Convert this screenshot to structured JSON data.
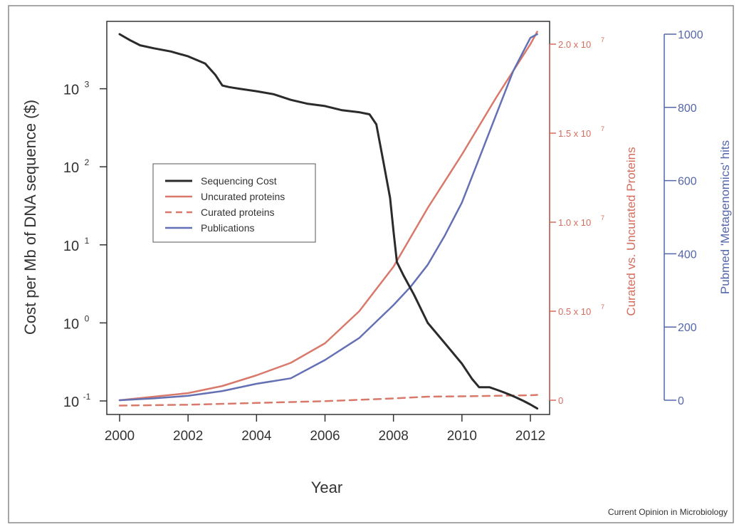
{
  "source": "Current Opinion in Microbiology",
  "colors": {
    "sequencing": "#2b2b2b",
    "uncurated": "#d9796b",
    "curated": "#d9796b",
    "publications": "#6470b4",
    "left_axis": "#333333",
    "right_axis_1": "#d36d5e",
    "right_axis_2": "#5566aa"
  },
  "chart_data": {
    "type": "line",
    "xlabel": "Year",
    "xlim": [
      2000,
      2012.6
    ],
    "x_ticks": [
      "2000",
      "2002",
      "2004",
      "2006",
      "2008",
      "2010",
      "2012"
    ],
    "left_axis": {
      "label": "Cost per Mb of DNA sequence ($)",
      "scale": "log",
      "lim": [
        0.1,
        5000
      ],
      "tick_values": [
        0.1,
        1,
        10,
        100,
        1000
      ],
      "tick_mantissa": [
        "10",
        "10",
        "10",
        "10",
        "10"
      ],
      "tick_exponents": [
        "-1",
        "0",
        "1",
        "2",
        "3"
      ]
    },
    "right_axis_1": {
      "label": "Curated vs. Uncurated Proteins",
      "lim": [
        0,
        20000000
      ],
      "tick_values": [
        0,
        5000000,
        10000000,
        15000000,
        20000000
      ],
      "tick_labels": [
        "0",
        "0.5 x 10",
        "1.0 x 10",
        "1.5 x 10",
        "2.0 x 10"
      ],
      "tick_exponents": [
        "",
        "7",
        "7",
        "7",
        "7"
      ]
    },
    "right_axis_2": {
      "label": "Pubmed 'Metagenomics' hits",
      "lim": [
        0,
        1000
      ],
      "tick_values": [
        0,
        200,
        400,
        600,
        800,
        1000
      ],
      "tick_labels": [
        "0",
        "200",
        "400",
        "600",
        "800",
        "1000"
      ]
    },
    "legend": {
      "placement": "center-left",
      "entries": [
        "Sequencing Cost",
        "Uncurated proteins",
        "Curated proteins",
        "Publications"
      ]
    },
    "series": [
      {
        "name": "Sequencing Cost",
        "axis": "left",
        "style": "solid",
        "x": [
          2000,
          2000.3,
          2000.6,
          2001.0,
          2001.5,
          2002.0,
          2002.5,
          2002.8,
          2003.0,
          2003.2,
          2003.5,
          2004.0,
          2004.5,
          2005.0,
          2005.5,
          2006.0,
          2006.5,
          2007.0,
          2007.3,
          2007.5,
          2007.7,
          2007.9,
          2008.0,
          2008.1,
          2008.3,
          2008.6,
          2009.0,
          2009.5,
          2010.0,
          2010.3,
          2010.5,
          2010.8,
          2011.0,
          2011.2,
          2011.4,
          2011.6,
          2011.8,
          2012.0,
          2012.2
        ],
        "y": [
          5000,
          4200,
          3600,
          3300,
          3000,
          2600,
          2100,
          1500,
          1100,
          1050,
          1000,
          930,
          850,
          720,
          640,
          600,
          530,
          500,
          470,
          350,
          120,
          40,
          15,
          6,
          4,
          2.3,
          1.0,
          0.55,
          0.3,
          0.19,
          0.15,
          0.15,
          0.14,
          0.13,
          0.12,
          0.11,
          0.1,
          0.09,
          0.08
        ]
      },
      {
        "name": "Uncurated proteins",
        "axis": "right_1",
        "style": "solid",
        "x": [
          2000,
          2001,
          2002,
          2003,
          2004,
          2005,
          2006,
          2007,
          2008,
          2009,
          2010,
          2011,
          2012,
          2012.2
        ],
        "y": [
          0,
          200000,
          400000,
          800000,
          1400000,
          2100000,
          3200000,
          5000000,
          7500000,
          10800000,
          13800000,
          17000000,
          20000000,
          20700000
        ]
      },
      {
        "name": "Curated proteins",
        "axis": "right_1",
        "style": "dashed",
        "x": [
          2000,
          2002,
          2004,
          2006,
          2008,
          2009,
          2010,
          2011,
          2012,
          2012.2
        ],
        "y": [
          -300000,
          -250000,
          -150000,
          -50000,
          100000,
          200000,
          220000,
          250000,
          280000,
          300000
        ]
      },
      {
        "name": "Publications",
        "axis": "right_2",
        "style": "solid",
        "x": [
          2000,
          2001,
          2002,
          2003,
          2004,
          2005,
          2006,
          2007,
          2007.5,
          2008,
          2008.5,
          2009,
          2009.5,
          2010,
          2010.5,
          2011,
          2011.5,
          2012,
          2012.2
        ],
        "y": [
          0,
          5,
          12,
          25,
          45,
          60,
          110,
          170,
          215,
          260,
          310,
          370,
          450,
          540,
          660,
          780,
          900,
          990,
          1000
        ]
      }
    ]
  }
}
